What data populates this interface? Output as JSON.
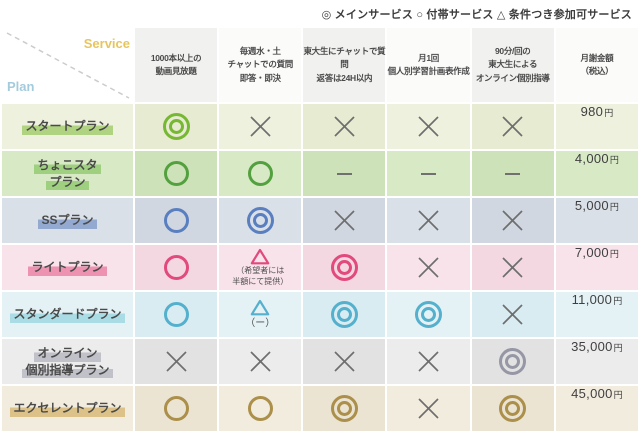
{
  "legend": {
    "text": "◎ メインサービス ○ 付帯サービス △ 条件つき参加可サービス"
  },
  "axis": {
    "service": "Service",
    "plan": "Plan"
  },
  "palette": {
    "service_label": "#e7c55e",
    "plan_label": "#a3cbdd",
    "divider": "#cccccc",
    "header_odd_bg": "#f1f1ef",
    "header_even_bg": "#fbfbfa",
    "cross": "#6e6e6e",
    "dash": "#707070",
    "header_text": "#4a4a4a",
    "price_text": "#3f3f3f"
  },
  "columns": [
    {
      "id": "videos",
      "label": "1000本以上の\n動画見放題"
    },
    {
      "id": "weekly-chat",
      "label": "毎週水・土\nチャットでの質問\n即答・即決"
    },
    {
      "id": "todai-chat",
      "label": "東大生にチャットで質\n問\n返答は24H以内"
    },
    {
      "id": "monthly-plan",
      "label": "月1回\n個人別学習計画表作成"
    },
    {
      "id": "online-tutoring",
      "label": "90分/回の\n東大生による\nオンライン個別指導"
    },
    {
      "id": "price",
      "label": "月謝金額\n（税込）"
    }
  ],
  "rows": [
    {
      "id": "start",
      "plan_lines": [
        "スタートプラン"
      ],
      "price": "980",
      "price_unit": "円",
      "colors": {
        "bg": "#eef1de",
        "bg_alt": "#e6ebd1",
        "accent": "#76b832",
        "highlight": "#b0d382"
      },
      "cells": [
        {
          "symbol": "double-circle"
        },
        {
          "symbol": "cross"
        },
        {
          "symbol": "cross"
        },
        {
          "symbol": "cross"
        },
        {
          "symbol": "cross"
        }
      ]
    },
    {
      "id": "chocosta",
      "plan_lines": [
        "ちょこスタ",
        "プラン"
      ],
      "price": "4,000",
      "price_unit": "円",
      "colors": {
        "bg": "#d8e9c6",
        "bg_alt": "#cde2b8",
        "accent": "#53a13e",
        "highlight": "#9ed07f"
      },
      "cells": [
        {
          "symbol": "circle"
        },
        {
          "symbol": "circle"
        },
        {
          "symbol": "dash"
        },
        {
          "symbol": "dash"
        },
        {
          "symbol": "dash"
        }
      ]
    },
    {
      "id": "ss",
      "plan_lines": [
        "SSプラン"
      ],
      "price": "5,000",
      "price_unit": "円",
      "colors": {
        "bg": "#dae0e8",
        "bg_alt": "#d0d7e0",
        "accent": "#5a7fc0",
        "highlight": "#93a9cf"
      },
      "cells": [
        {
          "symbol": "circle"
        },
        {
          "symbol": "double-circle"
        },
        {
          "symbol": "cross"
        },
        {
          "symbol": "cross"
        },
        {
          "symbol": "cross"
        }
      ]
    },
    {
      "id": "light",
      "plan_lines": [
        "ライトプラン"
      ],
      "price": "7,000",
      "price_unit": "円",
      "colors": {
        "bg": "#f8e3ea",
        "bg_alt": "#f3d8e1",
        "accent": "#e2497c",
        "highlight": "#ee92b2"
      },
      "cells": [
        {
          "symbol": "circle"
        },
        {
          "symbol": "triangle",
          "note": "（希望者には\n半額にて提供）"
        },
        {
          "symbol": "double-circle"
        },
        {
          "symbol": "cross"
        },
        {
          "symbol": "cross"
        }
      ]
    },
    {
      "id": "standard",
      "plan_lines": [
        "スタンダードプラン"
      ],
      "price": "11,000",
      "price_unit": "円",
      "colors": {
        "bg": "#e4f2f6",
        "bg_alt": "#d9ecf2",
        "accent": "#54b0cc",
        "highlight": "#aadce6"
      },
      "cells": [
        {
          "symbol": "circle"
        },
        {
          "symbol": "triangle",
          "note": "（ー）"
        },
        {
          "symbol": "double-circle"
        },
        {
          "symbol": "double-circle"
        },
        {
          "symbol": "cross"
        }
      ]
    },
    {
      "id": "online",
      "plan_lines": [
        "オンライン",
        "個別指導プラン"
      ],
      "price": "35,000",
      "price_unit": "円",
      "colors": {
        "bg": "#ececec",
        "bg_alt": "#e2e2e2",
        "accent": "#9697a5",
        "highlight": "#c1c1c9"
      },
      "cells": [
        {
          "symbol": "cross"
        },
        {
          "symbol": "cross"
        },
        {
          "symbol": "cross"
        },
        {
          "symbol": "cross"
        },
        {
          "symbol": "double-circle"
        }
      ]
    },
    {
      "id": "excellent",
      "plan_lines": [
        "エクセレントプラン"
      ],
      "price": "45,000",
      "price_unit": "円",
      "colors": {
        "bg": "#f2ecdf",
        "bg_alt": "#ebe4d2",
        "accent": "#ab8f4a",
        "highlight": "#dcc289"
      },
      "cells": [
        {
          "symbol": "circle"
        },
        {
          "symbol": "circle"
        },
        {
          "symbol": "double-circle"
        },
        {
          "symbol": "cross"
        },
        {
          "symbol": "double-circle"
        }
      ]
    }
  ],
  "chart_data": {
    "type": "table",
    "title": "",
    "legend": {
      "◎": "メインサービス",
      "○": "付帯サービス",
      "△": "条件つき参加可サービス"
    },
    "columns": [
      "1000本以上の動画見放題",
      "毎週水・土 チャットでの質問 即答・即決",
      "東大生にチャットで質問 返答は24H以内",
      "月1回 個人別学習計画表作成",
      "90分/回の東大生によるオンライン個別指導",
      "月謝金額（税込）"
    ],
    "rows": [
      {
        "plan": "スタートプラン",
        "values": [
          "◎",
          "×",
          "×",
          "×",
          "×"
        ],
        "price_jpy": 980
      },
      {
        "plan": "ちょこスタプラン",
        "values": [
          "○",
          "○",
          "—",
          "—",
          "—"
        ],
        "price_jpy": 4000
      },
      {
        "plan": "SSプラン",
        "values": [
          "○",
          "◎",
          "×",
          "×",
          "×"
        ],
        "price_jpy": 5000
      },
      {
        "plan": "ライトプラン",
        "values": [
          "○",
          "△（希望者には半額にて提供）",
          "◎",
          "×",
          "×"
        ],
        "price_jpy": 7000
      },
      {
        "plan": "スタンダードプラン",
        "values": [
          "○",
          "△（ー）",
          "◎",
          "◎",
          "×"
        ],
        "price_jpy": 11000
      },
      {
        "plan": "オンライン個別指導プラン",
        "values": [
          "×",
          "×",
          "×",
          "×",
          "◎"
        ],
        "price_jpy": 35000
      },
      {
        "plan": "エクセレントプラン",
        "values": [
          "○",
          "○",
          "◎",
          "×",
          "◎"
        ],
        "price_jpy": 45000
      }
    ]
  }
}
